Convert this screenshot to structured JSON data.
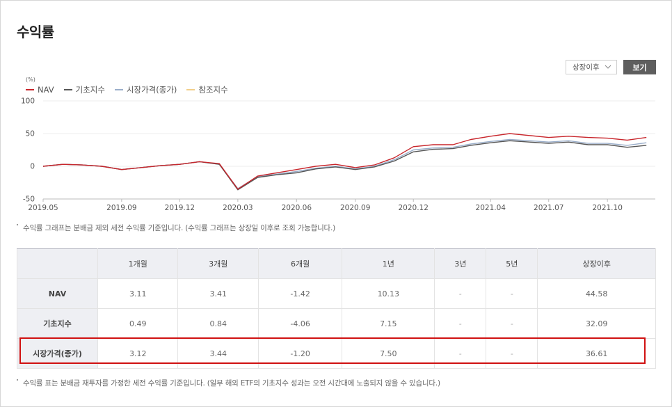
{
  "page": {
    "title": "수익률"
  },
  "controls": {
    "period_value": "상장이후",
    "view_label": "보기"
  },
  "chart_data": {
    "type": "line",
    "unit": "(%)",
    "ylim": [
      -50,
      100
    ],
    "yticks": [
      "100",
      "50",
      "0",
      "-50"
    ],
    "xticks": [
      "2019.05",
      "2019.09",
      "2019.12",
      "2020.03",
      "2020.06",
      "2020.09",
      "2020.12",
      "2021.04",
      "2021.07",
      "2021.10"
    ],
    "grid": true,
    "legend_placement": "top-left",
    "series": [
      {
        "name": "NAV",
        "color": "#c8262c",
        "x": [
          "2019.05",
          "2019.06",
          "2019.07",
          "2019.08",
          "2019.09",
          "2019.10",
          "2019.11",
          "2019.12",
          "2020.01",
          "2020.02",
          "2020.03",
          "2020.04",
          "2020.05",
          "2020.06",
          "2020.07",
          "2020.08",
          "2020.09",
          "2020.10",
          "2020.11",
          "2020.12",
          "2021.01",
          "2021.02",
          "2021.03",
          "2021.04",
          "2021.05",
          "2021.06",
          "2021.07",
          "2021.08",
          "2021.09",
          "2021.10",
          "2021.11",
          "2021.12"
        ],
        "values": [
          0,
          3,
          2,
          0,
          -5,
          -2,
          1,
          3,
          7,
          4,
          -35,
          -15,
          -10,
          -5,
          0,
          3,
          -2,
          2,
          13,
          30,
          33,
          33,
          41,
          46,
          50,
          47,
          44,
          46,
          44,
          43,
          40,
          44
        ]
      },
      {
        "name": "기초지수",
        "color": "#555555",
        "x": [
          "2019.05",
          "2019.06",
          "2019.07",
          "2019.08",
          "2019.09",
          "2019.10",
          "2019.11",
          "2019.12",
          "2020.01",
          "2020.02",
          "2020.03",
          "2020.04",
          "2020.05",
          "2020.06",
          "2020.07",
          "2020.08",
          "2020.09",
          "2020.10",
          "2020.11",
          "2020.12",
          "2021.01",
          "2021.02",
          "2021.03",
          "2021.04",
          "2021.05",
          "2021.06",
          "2021.07",
          "2021.08",
          "2021.09",
          "2021.10",
          "2021.11",
          "2021.12"
        ],
        "values": [
          0,
          3,
          2,
          0,
          -5,
          -2,
          1,
          3,
          7,
          3,
          -36,
          -17,
          -13,
          -10,
          -4,
          -1,
          -5,
          -1,
          8,
          22,
          26,
          27,
          32,
          36,
          39,
          37,
          35,
          37,
          33,
          33,
          29,
          32
        ]
      },
      {
        "name": "시장가격(종가)",
        "color": "#9aaeca",
        "x": [
          "2019.05",
          "2019.06",
          "2019.07",
          "2019.08",
          "2019.09",
          "2019.10",
          "2019.11",
          "2019.12",
          "2020.01",
          "2020.02",
          "2020.03",
          "2020.04",
          "2020.05",
          "2020.06",
          "2020.07",
          "2020.08",
          "2020.09",
          "2020.10",
          "2020.11",
          "2020.12",
          "2021.01",
          "2021.02",
          "2021.03",
          "2021.04",
          "2021.05",
          "2021.06",
          "2021.07",
          "2021.08",
          "2021.09",
          "2021.10",
          "2021.11",
          "2021.12"
        ],
        "values": [
          0,
          3,
          2,
          0,
          -5,
          -2,
          1,
          3,
          7,
          3,
          -34,
          -16,
          -12,
          -8,
          -3,
          0,
          -4,
          0,
          10,
          25,
          28,
          29,
          34,
          38,
          41,
          39,
          37,
          39,
          35,
          35,
          32,
          36
        ]
      },
      {
        "name": "참조지수",
        "color": "#f2cf8a",
        "x": [],
        "values": []
      }
    ]
  },
  "notes": {
    "chart_note": "수익률 그래프는 분배금 제외 세전 수익률 기준입니다. (수익률 그래프는 상장일 이후로 조회 가능합니다.)",
    "table_note": "수익률 표는 분배금 재투자를 가정한 세전 수익률 기준입니다. (일부 해외 ETF의 기초지수 성과는 오전 시간대에 노출되지 않을 수 있습니다.)"
  },
  "table": {
    "headers": [
      "",
      "1개월",
      "3개월",
      "6개월",
      "1년",
      "3년",
      "5년",
      "상장이후"
    ],
    "rows": [
      {
        "label": "NAV",
        "cells": [
          "3.11",
          "3.41",
          "-1.42",
          "10.13",
          "-",
          "-",
          "44.58"
        ]
      },
      {
        "label": "기초지수",
        "cells": [
          "0.49",
          "0.84",
          "-4.06",
          "7.15",
          "-",
          "-",
          "32.09"
        ]
      },
      {
        "label": "시장가격(종가)",
        "cells": [
          "3.12",
          "3.44",
          "-1.20",
          "7.50",
          "-",
          "-",
          "36.61"
        ]
      }
    ]
  }
}
